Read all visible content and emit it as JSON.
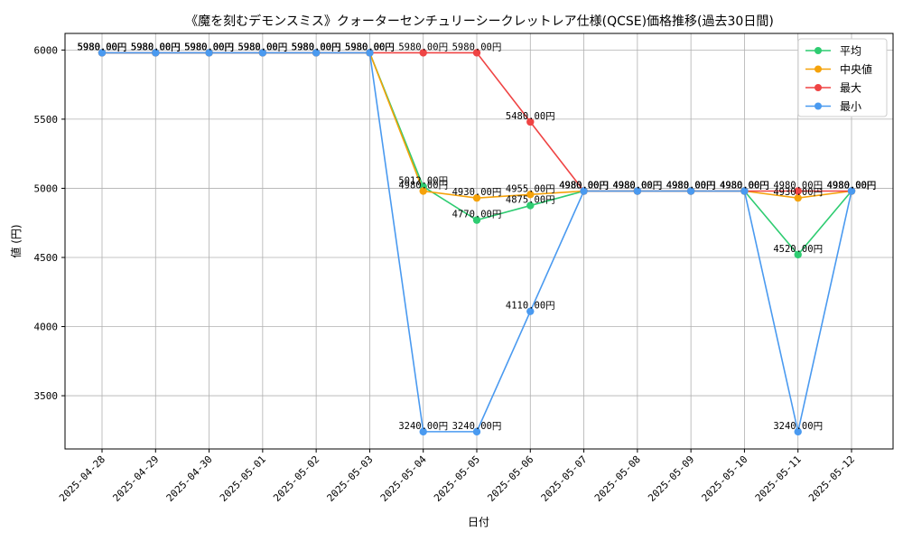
{
  "chart_data": {
    "type": "line",
    "title": "《魔を刻むデモンスミス》クォーターセンチュリーシークレットレア仕様(QCSE)価格推移(過去30日間)",
    "xlabel": "日付",
    "ylabel": "値 (円)",
    "categories": [
      "2025-04-28",
      "2025-04-29",
      "2025-04-30",
      "2025-05-01",
      "2025-05-02",
      "2025-05-03",
      "2025-05-04",
      "2025-05-05",
      "2025-05-06",
      "2025-05-07",
      "2025-05-08",
      "2025-05-09",
      "2025-05-10",
      "2025-05-11",
      "2025-05-12"
    ],
    "ylim": [
      3115,
      6120
    ],
    "yticks": [
      3500,
      4000,
      4500,
      5000,
      5500,
      6000
    ],
    "grid": true,
    "legend_position": "top-right",
    "label_suffix": "円",
    "series": [
      {
        "name": "平均",
        "color": "#2ecc71",
        "values": [
          5980,
          5980,
          5980,
          5980,
          5980,
          5980,
          5012,
          4770,
          4875,
          4980,
          4980,
          4980,
          4980,
          4520,
          4980
        ]
      },
      {
        "name": "中央値",
        "color": "#f5a20a",
        "values": [
          5980,
          5980,
          5980,
          5980,
          5980,
          5980,
          4980,
          4930,
          4955,
          4980,
          4980,
          4980,
          4980,
          4930,
          4980
        ]
      },
      {
        "name": "最大",
        "color": "#ef4444",
        "values": [
          5980,
          5980,
          5980,
          5980,
          5980,
          5980,
          5980,
          5980,
          5480,
          4980,
          4980,
          4980,
          4980,
          4980,
          4980
        ]
      },
      {
        "name": "最小",
        "color": "#4a9af0",
        "values": [
          5980,
          5980,
          5980,
          5980,
          5980,
          5980,
          3240,
          3240,
          4110,
          4980,
          4980,
          4980,
          4980,
          3240,
          4980
        ]
      }
    ]
  }
}
